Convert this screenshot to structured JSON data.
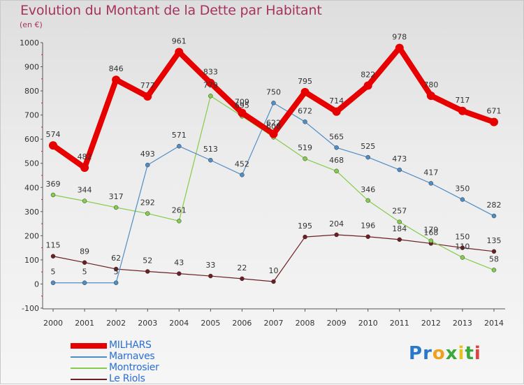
{
  "title": "Evolution du Montant de la Dette par Habitant",
  "subtitle": "(en €)",
  "brand": "Proxiti",
  "chart_data": {
    "type": "line",
    "x": [
      "2000",
      "2001",
      "2002",
      "2003",
      "2004",
      "2005",
      "2006",
      "2007",
      "2008",
      "2009",
      "2010",
      "2011",
      "2012",
      "2013",
      "2014"
    ],
    "ylim": [
      -100,
      1000
    ],
    "yticks": [
      -100,
      0,
      100,
      200,
      300,
      400,
      500,
      600,
      700,
      800,
      900,
      1000
    ],
    "grid": false,
    "legend": "bottom-left",
    "series": [
      {
        "name": "MILHARS",
        "color": "#e60000",
        "values": [
          574,
          482,
          846,
          777,
          961,
          833,
          709,
          622,
          795,
          714,
          822,
          978,
          780,
          717,
          671
        ]
      },
      {
        "name": "Marnaves",
        "color": "#4f8dc6",
        "values": [
          5,
          5,
          5,
          493,
          571,
          513,
          452,
          750,
          672,
          565,
          525,
          473,
          417,
          350,
          282
        ]
      },
      {
        "name": "Montrosier",
        "color": "#84cc4a",
        "values": [
          369,
          344,
          317,
          292,
          261,
          779,
          695,
          608,
          519,
          468,
          346,
          257,
          179,
          110,
          58
        ]
      },
      {
        "name": "Le Riols",
        "color": "#6b1f24",
        "values": [
          115,
          89,
          62,
          52,
          43,
          33,
          22,
          10,
          195,
          204,
          196,
          184,
          168,
          150,
          135
        ]
      }
    ]
  }
}
